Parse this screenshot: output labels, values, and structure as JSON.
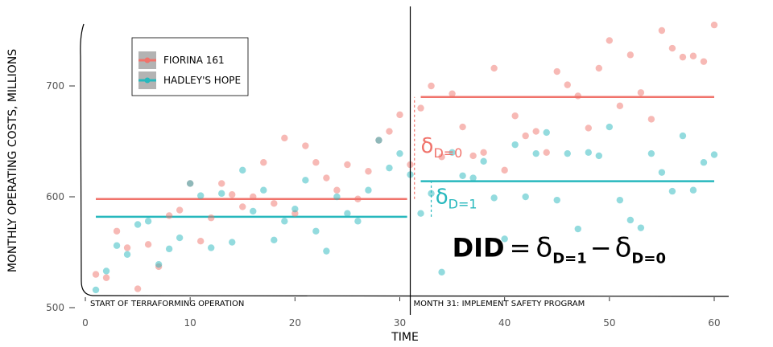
{
  "chart_data": {
    "type": "scatter",
    "xlabel": "TIME",
    "ylabel": "MONTHLY OPERATING COSTS, MILLIONS",
    "xlim": [
      0,
      61
    ],
    "ylim": [
      500,
      760
    ],
    "x_ticks": [
      0,
      10,
      20,
      30,
      40,
      50,
      60
    ],
    "y_ticks": [
      500,
      600,
      700
    ],
    "grid": false,
    "legend_position": "top-left",
    "intervention_x": 31,
    "annotations": {
      "start_label": "START OF TERRAFORMING OPERATION",
      "program_label": "MONTH 31: IMPLEMENT SAFETY PROGRAM",
      "delta_d0": "δ",
      "delta_d0_sub": "D=0",
      "delta_d1": "δ",
      "delta_d1_sub": "D=1",
      "did_lhs": "DID",
      "did_eq": "=",
      "did_delta1": "δ",
      "did_delta1_sub": "D=1",
      "did_minus": "−",
      "did_delta0": "δ",
      "did_delta0_sub": "D=0"
    },
    "series": [
      {
        "name": "FIORINA 161",
        "color": "#f0736b",
        "x": [
          1,
          2,
          3,
          4,
          5,
          6,
          7,
          8,
          9,
          10,
          11,
          12,
          13,
          14,
          15,
          16,
          17,
          18,
          19,
          20,
          21,
          22,
          23,
          24,
          25,
          26,
          27,
          28,
          29,
          30,
          31,
          32,
          33,
          34,
          35,
          36,
          37,
          38,
          39,
          40,
          41,
          42,
          43,
          44,
          45,
          46,
          47,
          48,
          49,
          50,
          51,
          52,
          53,
          54,
          55,
          56,
          57,
          58,
          59,
          60
        ],
        "y": [
          530,
          527,
          569,
          554,
          517,
          557,
          537,
          583,
          588,
          612,
          560,
          581,
          612,
          602,
          591,
          600,
          631,
          594,
          653,
          585,
          646,
          631,
          617,
          606,
          629,
          598,
          623,
          651,
          659,
          674,
          629,
          680,
          700,
          636,
          693,
          663,
          637,
          640,
          716,
          624,
          673,
          655,
          659,
          640,
          713,
          701,
          691,
          662,
          716,
          741,
          682,
          728,
          694,
          670,
          750,
          734,
          726,
          727,
          722,
          755
        ],
        "mean_pre": 598,
        "mean_post": 690
      },
      {
        "name": "HADLEY'S HOPE",
        "color": "#27b8bd",
        "x": [
          1,
          2,
          3,
          4,
          5,
          6,
          7,
          8,
          9,
          10,
          11,
          12,
          13,
          14,
          15,
          16,
          17,
          18,
          19,
          20,
          21,
          22,
          23,
          24,
          25,
          26,
          27,
          28,
          29,
          30,
          31,
          32,
          33,
          34,
          35,
          36,
          37,
          38,
          39,
          40,
          41,
          42,
          43,
          44,
          45,
          46,
          47,
          48,
          49,
          50,
          51,
          52,
          53,
          54,
          55,
          56,
          57,
          58,
          59,
          60
        ],
        "y": [
          516,
          533,
          556,
          548,
          575,
          578,
          539,
          553,
          563,
          612,
          601,
          554,
          603,
          559,
          624,
          587,
          606,
          561,
          578,
          589,
          615,
          569,
          551,
          600,
          585,
          578,
          606,
          651,
          626,
          639,
          620,
          585,
          603,
          532,
          640,
          619,
          617,
          632,
          599,
          562,
          647,
          600,
          639,
          658,
          597,
          639,
          571,
          640,
          637,
          663,
          597,
          579,
          572,
          639,
          622,
          605,
          655,
          606,
          631,
          638
        ],
        "mean_pre": 582,
        "mean_post": 614
      }
    ]
  }
}
